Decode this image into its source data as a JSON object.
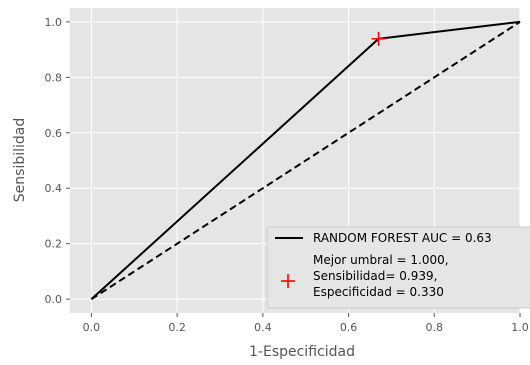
{
  "chart_data": {
    "type": "line",
    "xlabel": "1-Especificidad",
    "ylabel": "Sensibilidad",
    "xlim": [
      -0.05,
      1.0
    ],
    "ylim": [
      -0.05,
      1.05
    ],
    "xticks": [
      "0.0",
      "0.2",
      "0.4",
      "0.6",
      "0.8",
      "1.0"
    ],
    "yticks": [
      "0.0",
      "0.2",
      "0.4",
      "0.6",
      "0.8",
      "1.0"
    ],
    "grid": true,
    "style": "ggplot",
    "legend_position": "lower-right",
    "series": [
      {
        "name": "RANDOM FOREST AUC  = 0.63",
        "kind": "line",
        "line_style": "solid",
        "color": "#000000",
        "x": [
          0.0,
          0.67,
          1.0
        ],
        "y": [
          0.0,
          0.939,
          1.0
        ]
      },
      {
        "kind": "line",
        "line_style": "dashed",
        "color": "#000000",
        "x": [
          0.0,
          1.0
        ],
        "y": [
          0.0,
          1.0
        ]
      },
      {
        "name": "Mejor umbral = 1.000, Sensibilidad= 0.939, Especificidad = 0.330",
        "kind": "marker",
        "marker": "plus",
        "color": "#ff0000",
        "x": [
          0.67
        ],
        "y": [
          0.939
        ]
      }
    ],
    "legend": {
      "line_label": "RANDOM FOREST AUC  = 0.63",
      "marker_label_lines": [
        "Mejor umbral = 1.000,",
        "Sensibilidad= 0.939,",
        "Especificidad = 0.330"
      ]
    }
  },
  "colors": {
    "plot_background": "#e5e5e5",
    "grid": "#ffffff",
    "line": "#000000",
    "marker": "#ff0000",
    "tick_text": "#555555",
    "legend_background": "#e5e5e5"
  }
}
